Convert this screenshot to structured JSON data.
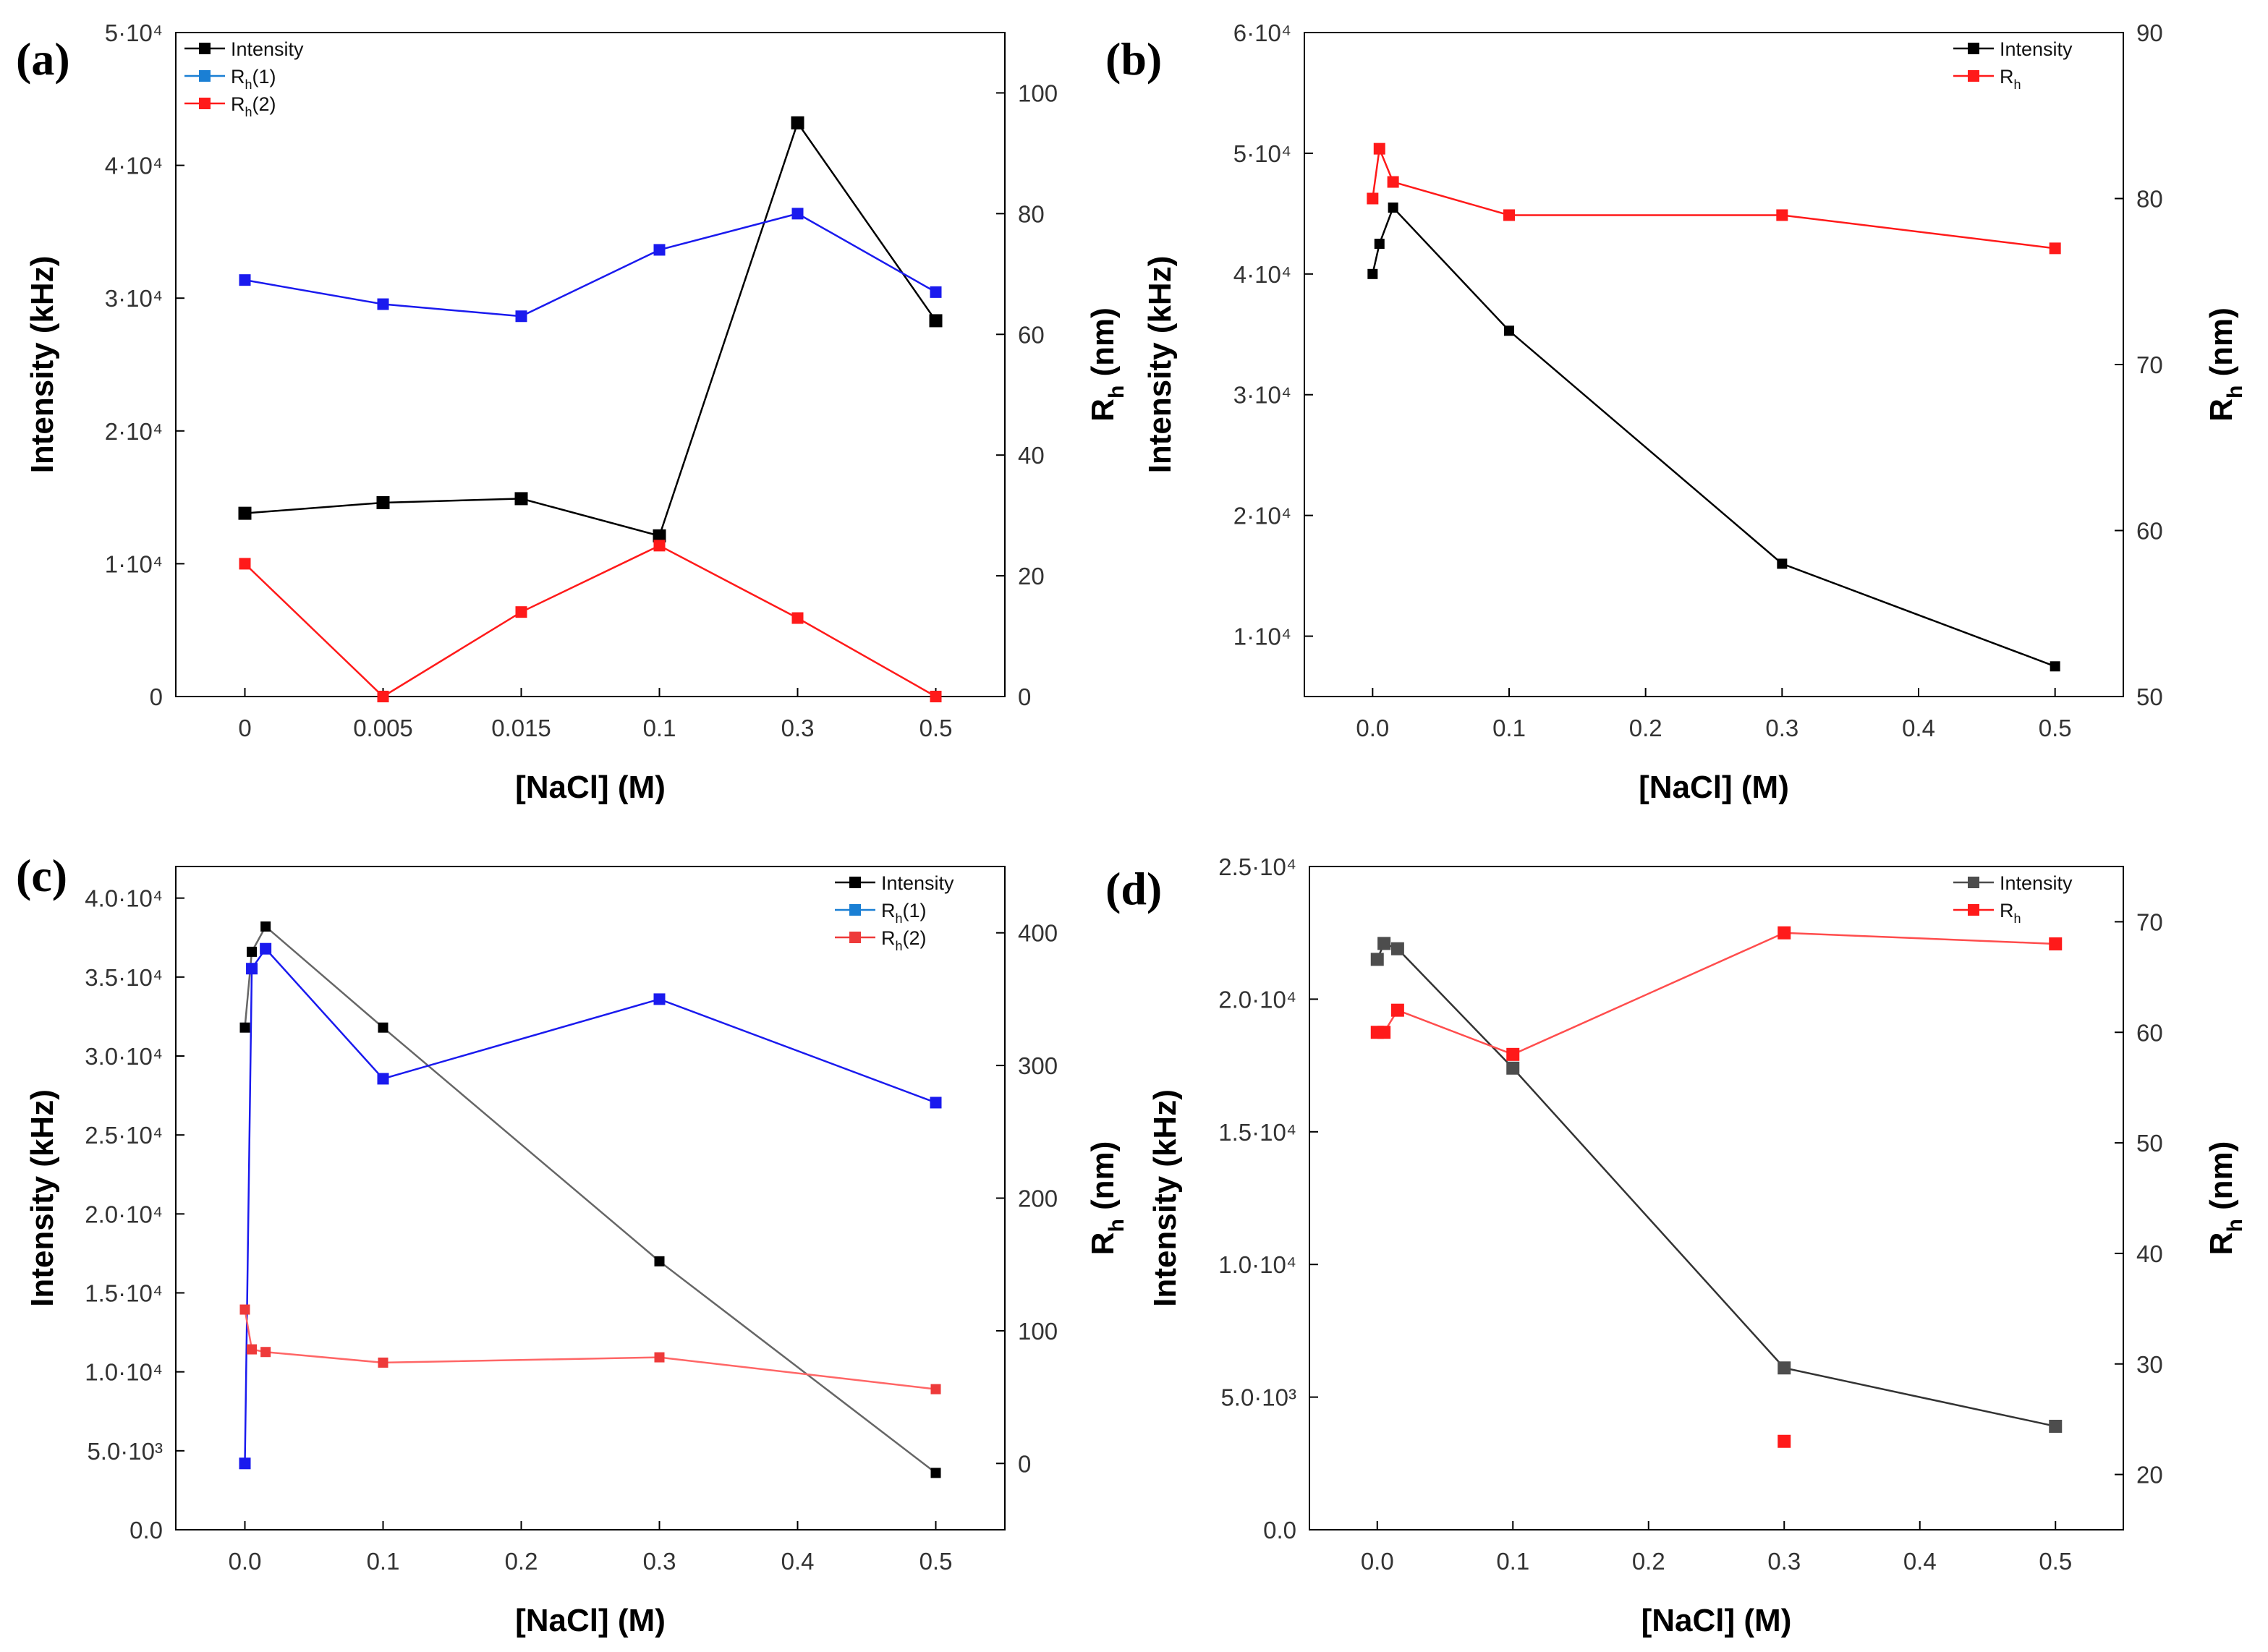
{
  "figure": {
    "colors": {
      "black": "#000000",
      "gray": "#4d4d4d",
      "blue": "#1a1aee",
      "blue_legend": "#1a7fd4",
      "red": "#ff1a1a",
      "red_light": "#ee3a3a"
    }
  },
  "chart_data": [
    {
      "id": "a",
      "type": "line",
      "panel_label": "(a)",
      "xlabel": "[NaCl] (M)",
      "ylabel_left": "Intensity (kHz)",
      "ylabel_right_main": "R",
      "ylabel_right_sub": "h",
      "ylabel_right_tail": " (nm)",
      "x_scale": "categorical",
      "categories": [
        "0",
        "0.005",
        "0.015",
        "0.1",
        "0.3",
        "0.5"
      ],
      "xlim": [
        -0.5,
        5.5
      ],
      "ylim_left": [
        0,
        50000
      ],
      "ylim_right": [
        0,
        110
      ],
      "yticks_left": [
        {
          "v": 0,
          "label": "0"
        },
        {
          "v": 10000,
          "label": "1·10⁴"
        },
        {
          "v": 20000,
          "label": "2·10⁴"
        },
        {
          "v": 30000,
          "label": "3·10⁴"
        },
        {
          "v": 40000,
          "label": "4·10⁴"
        },
        {
          "v": 50000,
          "label": "5·10⁴"
        }
      ],
      "yticks_right": [
        {
          "v": 0,
          "label": "0"
        },
        {
          "v": 20,
          "label": "20"
        },
        {
          "v": 40,
          "label": "40"
        },
        {
          "v": 60,
          "label": "60"
        },
        {
          "v": 80,
          "label": "80"
        },
        {
          "v": 100,
          "label": "100"
        }
      ],
      "legend": {
        "position": "top-left"
      },
      "series": [
        {
          "name": "Intensity",
          "legend_main": "Intensity",
          "legend_sub": "",
          "legend_tail": "",
          "axis": "left",
          "color": "#000000",
          "marker_size": 18,
          "values": [
            13800,
            14600,
            14900,
            12100,
            43200,
            28300
          ]
        },
        {
          "name": "Rh(1)",
          "legend_main": "R",
          "legend_sub": "h",
          "legend_tail": "(1)",
          "axis": "right",
          "color": "#1a1aee",
          "legend_color": "#1a7fd4",
          "marker_size": 16,
          "values": [
            69,
            65,
            63,
            74,
            80,
            67
          ]
        },
        {
          "name": "Rh(2)",
          "legend_main": "R",
          "legend_sub": "h",
          "legend_tail": "(2)",
          "axis": "right",
          "color": "#ff1a1a",
          "marker_size": 16,
          "values": [
            22,
            0,
            14,
            25,
            13,
            0
          ]
        }
      ]
    },
    {
      "id": "b",
      "type": "line",
      "panel_label": "(b)",
      "xlabel": "[NaCl] (M)",
      "ylabel_left": "Intensity (kHz)",
      "ylabel_right_main": "R",
      "ylabel_right_sub": "h",
      "ylabel_right_tail": " (nm)",
      "x_scale": "linear",
      "xlim": [
        -0.05,
        0.55
      ],
      "xticks": [
        {
          "v": 0,
          "label": "0.0"
        },
        {
          "v": 0.1,
          "label": "0.1"
        },
        {
          "v": 0.2,
          "label": "0.2"
        },
        {
          "v": 0.3,
          "label": "0.3"
        },
        {
          "v": 0.4,
          "label": "0.4"
        },
        {
          "v": 0.5,
          "label": "0.5"
        }
      ],
      "ylim_left": [
        5000,
        60000
      ],
      "ylim_right": [
        50,
        90
      ],
      "yticks_left": [
        {
          "v": 10000,
          "label": "1·10⁴"
        },
        {
          "v": 20000,
          "label": "2·10⁴"
        },
        {
          "v": 30000,
          "label": "3·10⁴"
        },
        {
          "v": 40000,
          "label": "4·10⁴"
        },
        {
          "v": 50000,
          "label": "5·10⁴"
        },
        {
          "v": 60000,
          "label": "6·10⁴"
        }
      ],
      "yticks_right": [
        {
          "v": 50,
          "label": "50"
        },
        {
          "v": 60,
          "label": "60"
        },
        {
          "v": 70,
          "label": "70"
        },
        {
          "v": 80,
          "label": "80"
        },
        {
          "v": 90,
          "label": "90"
        }
      ],
      "legend": {
        "position": "top-right"
      },
      "series": [
        {
          "name": "Intensity",
          "legend_main": "Intensity",
          "legend_sub": "",
          "legend_tail": "",
          "axis": "left",
          "color": "#000000",
          "marker_size": 14,
          "x": [
            0,
            0.005,
            0.015,
            0.1,
            0.3,
            0.5
          ],
          "values": [
            40000,
            42500,
            45500,
            35300,
            16000,
            7500
          ]
        },
        {
          "name": "Rh",
          "legend_main": "R",
          "legend_sub": "h",
          "legend_tail": "",
          "axis": "right",
          "color": "#ff1a1a",
          "marker_size": 16,
          "x": [
            0,
            0.005,
            0.015,
            0.1,
            0.3,
            0.5
          ],
          "values": [
            80,
            83,
            81,
            79,
            79,
            77
          ]
        }
      ]
    },
    {
      "id": "c",
      "type": "line",
      "panel_label": "(c)",
      "xlabel": "[NaCl] (M)",
      "ylabel_left": "Intensity (kHz)",
      "ylabel_right_main": "R",
      "ylabel_right_sub": "h",
      "ylabel_right_tail": " (nm)",
      "x_scale": "linear",
      "xlim": [
        -0.05,
        0.55
      ],
      "xticks": [
        {
          "v": 0,
          "label": "0.0"
        },
        {
          "v": 0.1,
          "label": "0.1"
        },
        {
          "v": 0.2,
          "label": "0.2"
        },
        {
          "v": 0.3,
          "label": "0.3"
        },
        {
          "v": 0.4,
          "label": "0.4"
        },
        {
          "v": 0.5,
          "label": "0.5"
        }
      ],
      "ylim_left": [
        0,
        42000
      ],
      "ylim_right": [
        -50,
        450
      ],
      "yticks_left": [
        {
          "v": 0,
          "label": "0.0"
        },
        {
          "v": 5000,
          "label": "5.0·10³"
        },
        {
          "v": 10000,
          "label": "1.0·10⁴"
        },
        {
          "v": 15000,
          "label": "1.5·10⁴"
        },
        {
          "v": 20000,
          "label": "2.0·10⁴"
        },
        {
          "v": 25000,
          "label": "2.5·10⁴"
        },
        {
          "v": 30000,
          "label": "3.0·10⁴"
        },
        {
          "v": 35000,
          "label": "3.5·10⁴"
        },
        {
          "v": 40000,
          "label": "4.0·10⁴"
        }
      ],
      "yticks_right": [
        {
          "v": 0,
          "label": "0"
        },
        {
          "v": 100,
          "label": "100"
        },
        {
          "v": 200,
          "label": "200"
        },
        {
          "v": 300,
          "label": "300"
        },
        {
          "v": 400,
          "label": "400"
        }
      ],
      "legend": {
        "position": "top-right"
      },
      "series": [
        {
          "name": "Intensity",
          "legend_main": "Intensity",
          "legend_sub": "",
          "legend_tail": "",
          "axis": "left",
          "color": "#000000",
          "line_color": "#666666",
          "marker_size": 14,
          "x": [
            0,
            0.005,
            0.015,
            0.1,
            0.3,
            0.5
          ],
          "values": [
            31800,
            36600,
            38200,
            31800,
            17000,
            3600
          ]
        },
        {
          "name": "Rh(1)",
          "legend_main": "R",
          "legend_sub": "h",
          "legend_tail": "(1)",
          "axis": "right",
          "color": "#1a1aee",
          "legend_color": "#1a7fd4",
          "marker_size": 16,
          "x": [
            0,
            0.005,
            0.015,
            0.1,
            0.3,
            0.5
          ],
          "values": [
            0,
            373,
            388,
            290,
            350,
            272
          ]
        },
        {
          "name": "Rh(2)",
          "legend_main": "R",
          "legend_sub": "h",
          "legend_tail": "(2)",
          "axis": "right",
          "color": "#ee3a3a",
          "line_color": "#ff6666",
          "marker_size": 14,
          "x": [
            0,
            0.005,
            0.015,
            0.1,
            0.3,
            0.5
          ],
          "values": [
            116,
            86,
            84,
            76,
            80,
            56
          ]
        }
      ]
    },
    {
      "id": "d",
      "type": "line",
      "panel_label": "(d)",
      "xlabel": "[NaCl] (M)",
      "ylabel_left": "Intensity (kHz)",
      "ylabel_right_main": "R",
      "ylabel_right_sub": "h",
      "ylabel_right_tail": " (nm)",
      "x_scale": "linear",
      "xlim": [
        -0.05,
        0.55
      ],
      "xticks": [
        {
          "v": 0,
          "label": "0.0"
        },
        {
          "v": 0.1,
          "label": "0.1"
        },
        {
          "v": 0.2,
          "label": "0.2"
        },
        {
          "v": 0.3,
          "label": "0.3"
        },
        {
          "v": 0.4,
          "label": "0.4"
        },
        {
          "v": 0.5,
          "label": "0.5"
        }
      ],
      "ylim_left": [
        0,
        25000
      ],
      "ylim_right": [
        15,
        75
      ],
      "yticks_left": [
        {
          "v": 0,
          "label": "0.0"
        },
        {
          "v": 5000,
          "label": "5.0·10³"
        },
        {
          "v": 10000,
          "label": "1.0·10⁴"
        },
        {
          "v": 15000,
          "label": "1.5·10⁴"
        },
        {
          "v": 20000,
          "label": "2.0·10⁴"
        },
        {
          "v": 25000,
          "label": "2.5·10⁴"
        }
      ],
      "yticks_right": [
        {
          "v": 20,
          "label": "20"
        },
        {
          "v": 30,
          "label": "30"
        },
        {
          "v": 40,
          "label": "40"
        },
        {
          "v": 50,
          "label": "50"
        },
        {
          "v": 60,
          "label": "60"
        },
        {
          "v": 70,
          "label": "70"
        }
      ],
      "legend": {
        "position": "top-right"
      },
      "series": [
        {
          "name": "Intensity",
          "legend_main": "Intensity",
          "legend_sub": "",
          "legend_tail": "",
          "axis": "left",
          "color": "#4d4d4d",
          "line_color": "#333333",
          "marker_size": 18,
          "x": [
            0,
            0.005,
            0.015,
            0.1,
            0.3,
            0.5
          ],
          "values": [
            21500,
            22100,
            21900,
            17400,
            6100,
            3900
          ]
        },
        {
          "name": "Rh",
          "legend_main": "R",
          "legend_sub": "h",
          "legend_tail": "",
          "axis": "right",
          "color": "#ff1a1a",
          "line_color": "#ff4d4d",
          "marker_size": 18,
          "x": [
            0,
            0.005,
            0.015,
            0.1,
            0.3,
            0.5
          ],
          "values": [
            60,
            60,
            62,
            58,
            69,
            68
          ]
        },
        {
          "name": "Rh-isolated",
          "legend_main": "",
          "legend_sub": "",
          "legend_tail": "",
          "axis": "right",
          "color": "#ff1a1a",
          "marker_size": 18,
          "no_line": true,
          "no_legend": true,
          "x": [
            0.3
          ],
          "values": [
            23
          ]
        }
      ]
    }
  ]
}
